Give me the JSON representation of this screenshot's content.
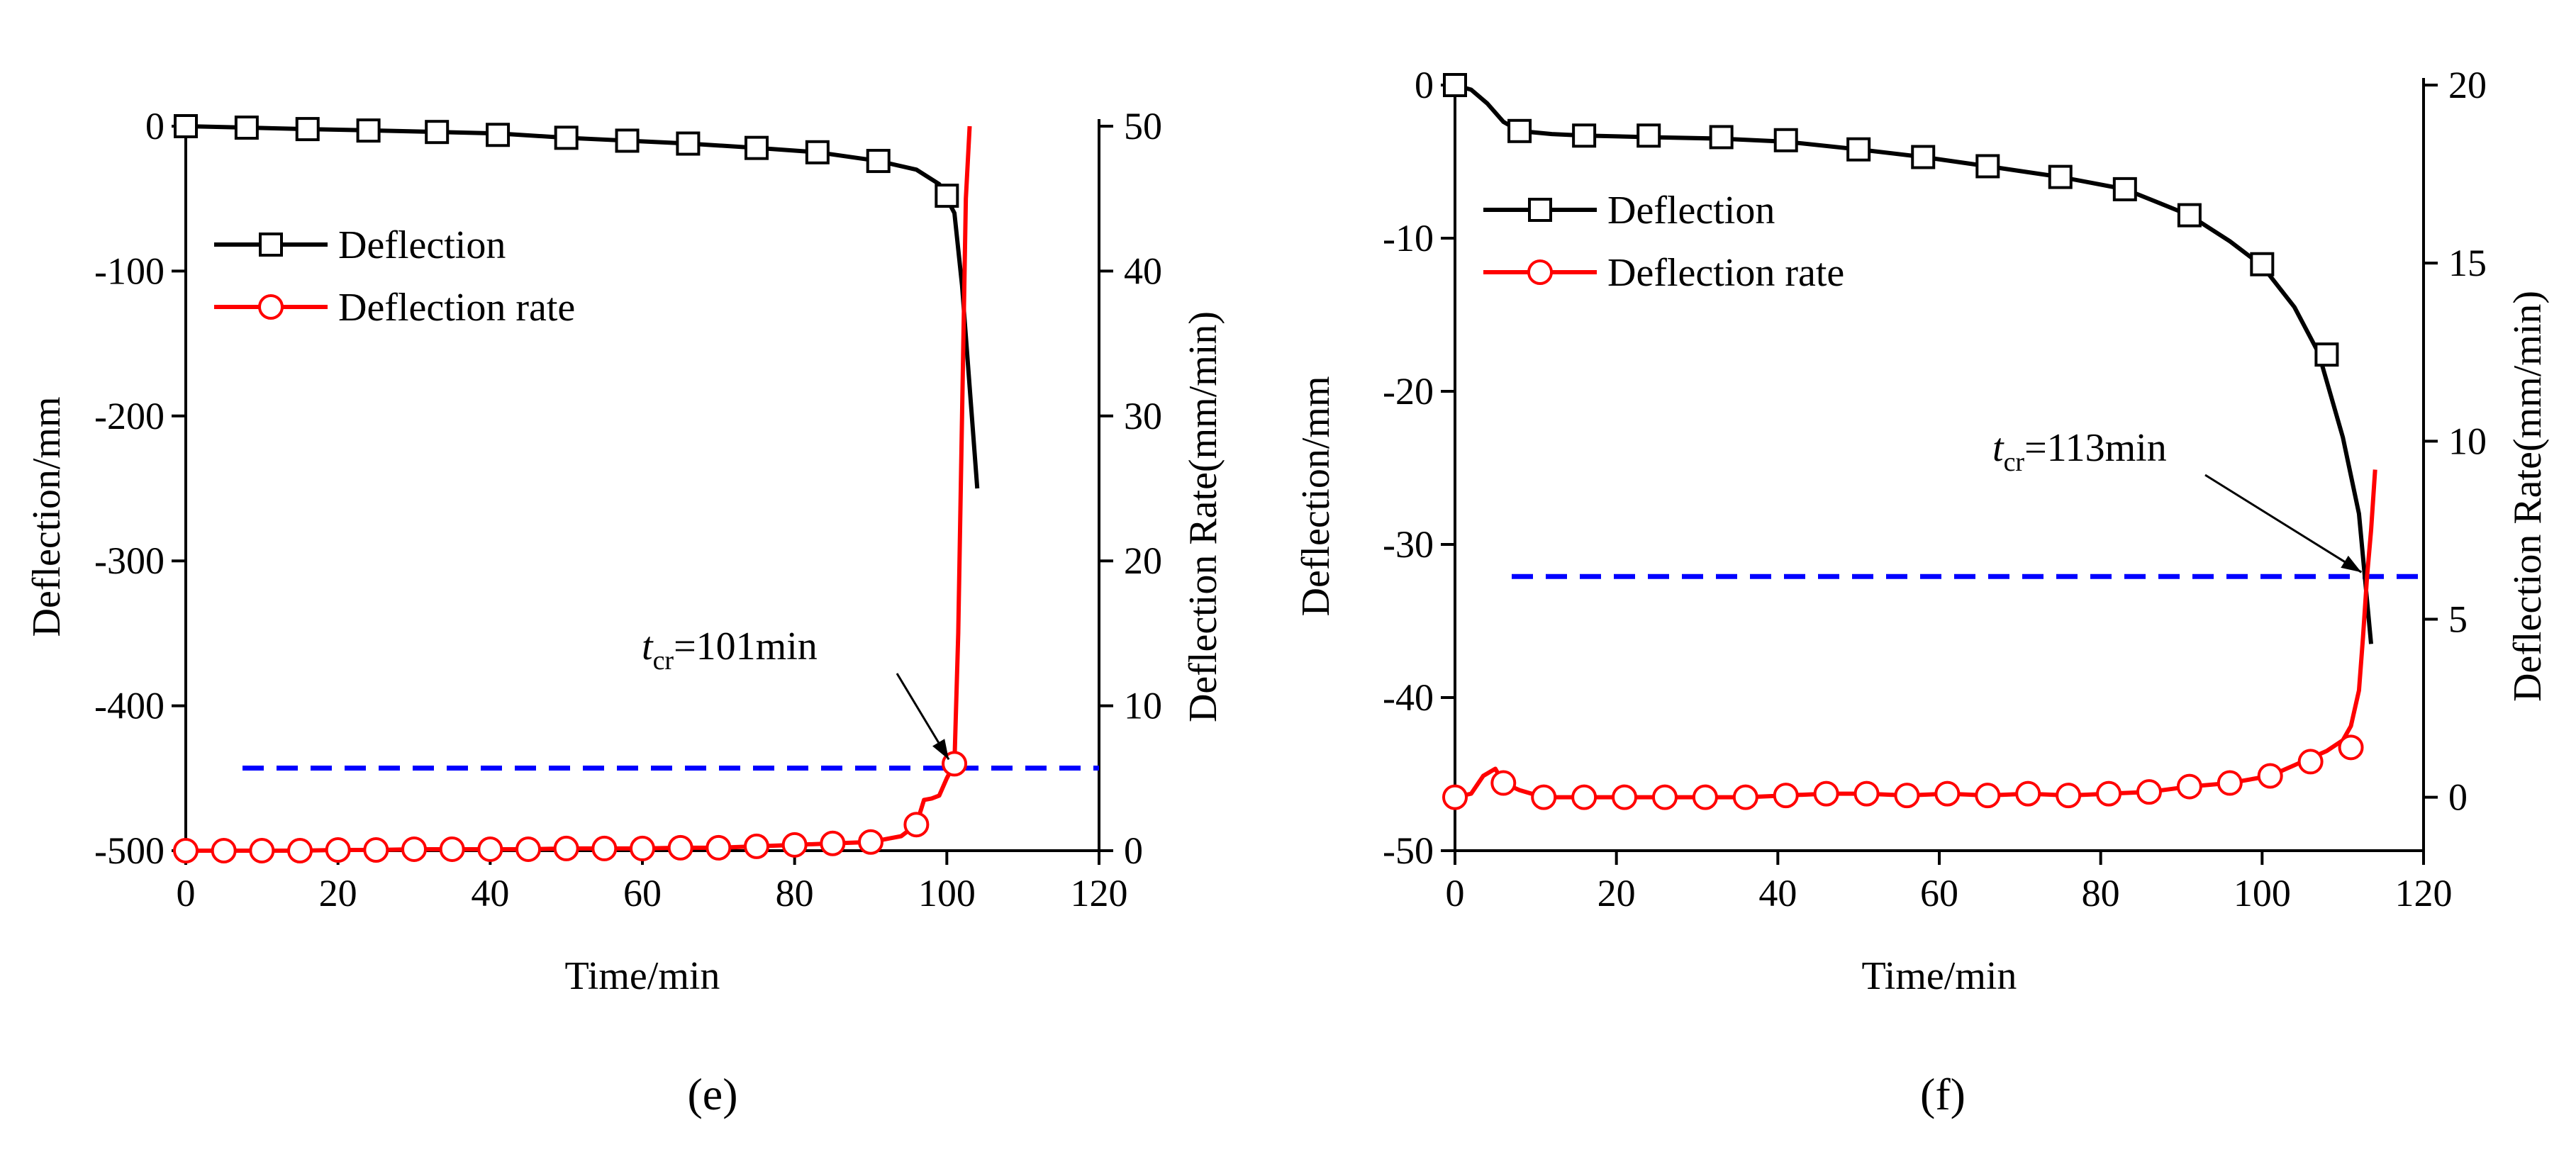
{
  "chart_data": [
    {
      "type": "line",
      "panel_label": "(e)",
      "xlabel": "Time/min",
      "ylabel": "Deflection/mm",
      "y2label": "Deflection Rate(mm/min)",
      "xlim": [
        0,
        120
      ],
      "ylim": [
        -500,
        0
      ],
      "y2lim": [
        0,
        50
      ],
      "xticks": [
        0,
        20,
        40,
        60,
        80,
        100,
        120
      ],
      "yticks": [
        0,
        -100,
        -200,
        -300,
        -400,
        -500
      ],
      "y2ticks": [
        0,
        10,
        20,
        30,
        40,
        50
      ],
      "threshold_rate": 5.7,
      "annotation": {
        "t": "t",
        "sub": "cr",
        "rest": "=101min",
        "x": 101,
        "rate": 6.0
      },
      "series": [
        {
          "name": "Deflection",
          "axis": "left",
          "color": "#000000",
          "marker": "square",
          "x": [
            0,
            8,
            16,
            25,
            33,
            41,
            50,
            58,
            66,
            75,
            83,
            91,
            96,
            99,
            101,
            102,
            103,
            104
          ],
          "y": [
            0,
            -1,
            -2,
            -3,
            -4,
            -5,
            -8,
            -10,
            -12,
            -15,
            -18,
            -24,
            -30,
            -40,
            -60,
            -110,
            -180,
            -250
          ],
          "marker_x": [
            0,
            8,
            16,
            24,
            33,
            41,
            50,
            58,
            66,
            75,
            83,
            91,
            100
          ],
          "marker_y": [
            0,
            -1,
            -2,
            -3,
            -4,
            -6,
            -8,
            -10,
            -12,
            -15,
            -18,
            -24,
            -48
          ]
        },
        {
          "name": "Deflection rate",
          "axis": "right",
          "color": "#ff0000",
          "marker": "circle",
          "x": [
            0,
            5,
            10,
            15,
            20,
            25,
            30,
            35,
            40,
            45,
            50,
            55,
            60,
            65,
            70,
            75,
            80,
            85,
            90,
            94,
            96,
            97,
            98,
            99,
            100,
            101,
            101.5,
            102,
            102.5,
            103
          ],
          "y": [
            0,
            0,
            0,
            0,
            0.05,
            0.05,
            0.1,
            0.1,
            0.1,
            0.1,
            0.15,
            0.15,
            0.15,
            0.2,
            0.2,
            0.3,
            0.4,
            0.5,
            0.6,
            1.0,
            1.8,
            3.5,
            3.6,
            3.8,
            5.0,
            6.0,
            15,
            30,
            45,
            50
          ],
          "marker_x": [
            0,
            5,
            10,
            15,
            20,
            25,
            30,
            35,
            40,
            45,
            50,
            55,
            60,
            65,
            70,
            75,
            80,
            85,
            90,
            96,
            101
          ],
          "marker_y": [
            0,
            0,
            0,
            0,
            0.05,
            0.05,
            0.1,
            0.1,
            0.1,
            0.1,
            0.15,
            0.15,
            0.15,
            0.2,
            0.2,
            0.3,
            0.4,
            0.5,
            0.6,
            1.8,
            6.0
          ]
        }
      ]
    },
    {
      "type": "line",
      "panel_label": "(f)",
      "xlabel": "Time/min",
      "ylabel": "Deflection/mm",
      "y2label": "Deflection Rate(mm/min)",
      "xlim": [
        0,
        120
      ],
      "ylim": [
        -50,
        0
      ],
      "y2lim": [
        -1.5,
        20
      ],
      "xticks": [
        0,
        20,
        40,
        60,
        80,
        100,
        120
      ],
      "yticks": [
        0,
        -10,
        -20,
        -30,
        -40,
        -50
      ],
      "y2ticks": [
        0,
        5,
        10,
        15,
        20
      ],
      "threshold_rate": 6.2,
      "annotation": {
        "t": "t",
        "sub": "cr",
        "rest": "=113min",
        "x": 113,
        "rate": 6.2
      },
      "series": [
        {
          "name": "Deflection",
          "axis": "left",
          "color": "#000000",
          "marker": "square",
          "x": [
            0,
            2,
            4,
            6,
            8,
            12,
            16,
            24,
            33,
            41,
            50,
            58,
            66,
            75,
            83,
            91,
            96,
            100,
            104,
            107,
            110,
            112,
            113.5
          ],
          "y": [
            0,
            -0.3,
            -1.2,
            -2.4,
            -3.0,
            -3.2,
            -3.3,
            -3.4,
            -3.5,
            -3.7,
            -4.2,
            -4.7,
            -5.3,
            -6.0,
            -6.8,
            -8.5,
            -10.2,
            -11.8,
            -14.5,
            -17.5,
            -23,
            -28,
            -36.5
          ],
          "marker_x": [
            0,
            8,
            16,
            24,
            33,
            41,
            50,
            58,
            66,
            75,
            83,
            91,
            100,
            108
          ],
          "marker_y": [
            0,
            -3.0,
            -3.3,
            -3.3,
            -3.4,
            -3.6,
            -4.2,
            -4.7,
            -5.3,
            -6.0,
            -6.8,
            -8.5,
            -11.7,
            -17.6
          ]
        },
        {
          "name": "Deflection rate",
          "axis": "right",
          "color": "#ff0000",
          "marker": "circle",
          "x": [
            0,
            2,
            3.5,
            5,
            6,
            8,
            11,
            16,
            21,
            26,
            31,
            36,
            41,
            46,
            51,
            56,
            61,
            66,
            71,
            76,
            81,
            86,
            91,
            96,
            101,
            104,
            106,
            108,
            110,
            111,
            112,
            112.5,
            113,
            113.5,
            114
          ],
          "y": [
            0,
            0.1,
            0.6,
            0.8,
            0.4,
            0.2,
            0,
            0,
            0,
            0,
            0,
            0,
            0.05,
            0.1,
            0.1,
            0.05,
            0.1,
            0.05,
            0.1,
            0.05,
            0.1,
            0.15,
            0.3,
            0.4,
            0.6,
            0.9,
            1.1,
            1.3,
            1.6,
            2.0,
            3.0,
            4.5,
            6.2,
            7.5,
            9.2
          ],
          "marker_x": [
            0,
            6,
            11,
            16,
            21,
            26,
            31,
            36,
            41,
            46,
            51,
            56,
            61,
            66,
            71,
            76,
            81,
            86,
            91,
            96,
            101,
            106,
            111
          ],
          "marker_y": [
            0,
            0.4,
            0,
            0,
            0,
            0,
            0,
            0,
            0.05,
            0.1,
            0.1,
            0.05,
            0.1,
            0.05,
            0.1,
            0.05,
            0.1,
            0.15,
            0.3,
            0.4,
            0.6,
            1.0,
            1.4
          ]
        }
      ]
    }
  ]
}
